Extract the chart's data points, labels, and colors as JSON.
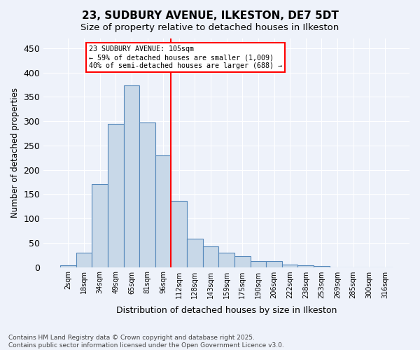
{
  "title_line1": "23, SUDBURY AVENUE, ILKESTON, DE7 5DT",
  "title_line2": "Size of property relative to detached houses in Ilkeston",
  "xlabel": "Distribution of detached houses by size in Ilkeston",
  "ylabel": "Number of detached properties",
  "bin_labels": [
    "2sqm",
    "18sqm",
    "34sqm",
    "49sqm",
    "65sqm",
    "81sqm",
    "96sqm",
    "112sqm",
    "128sqm",
    "143sqm",
    "159sqm",
    "175sqm",
    "190sqm",
    "206sqm",
    "222sqm",
    "238sqm",
    "253sqm",
    "269sqm",
    "285sqm",
    "300sqm",
    "316sqm"
  ],
  "bar_values": [
    3,
    30,
    170,
    295,
    373,
    297,
    230,
    136,
    59,
    43,
    30,
    22,
    12,
    12,
    5,
    4,
    2,
    0,
    0,
    0,
    0
  ],
  "bar_color": "#c8d8e8",
  "bar_edge_color": "#5588bb",
  "annotation_text": "23 SUDBURY AVENUE: 105sqm\n← 59% of detached houses are smaller (1,009)\n40% of semi-detached houses are larger (688) →",
  "vline_x": 6.5,
  "vline_color": "red",
  "annotation_box_color": "red",
  "annotation_box_facecolor": "white",
  "footer_line1": "Contains HM Land Registry data © Crown copyright and database right 2025.",
  "footer_line2": "Contains public sector information licensed under the Open Government Licence v3.0.",
  "ylim": [
    0,
    470
  ],
  "background_color": "#eef2fa"
}
